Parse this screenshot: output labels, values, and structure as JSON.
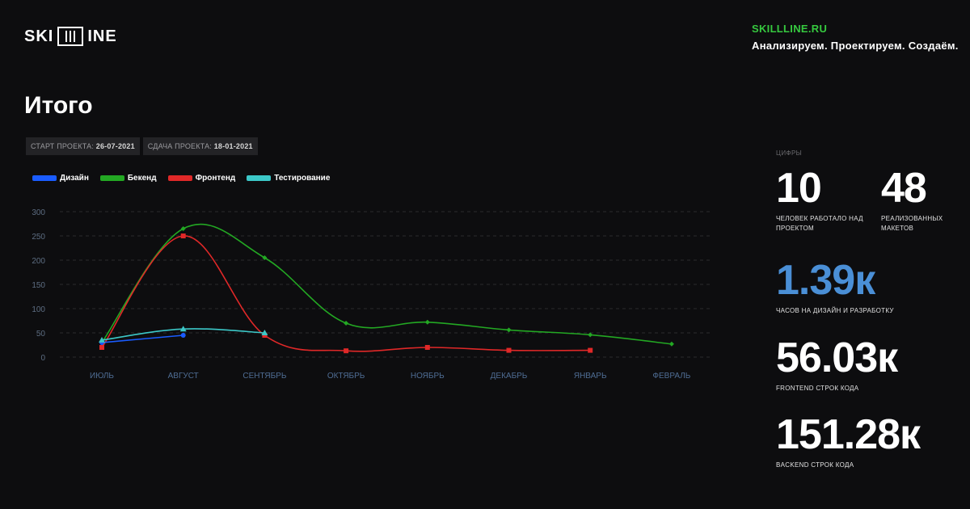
{
  "logo": {
    "left": "SKI",
    "right": "INE"
  },
  "site": {
    "url": "SKILLLINE.RU",
    "tagline": "Анализируем. Проектируем. Создаём."
  },
  "page_title": "Итого",
  "dates": {
    "start_label": "СТАРТ ПРОЕКТА:",
    "start_value": "26-07-2021",
    "end_label": "СДАЧА ПРОЕКТА:",
    "end_value": "18-01-2021"
  },
  "stats": {
    "caption": "ЦИФРЫ",
    "people_value": "10",
    "people_label": "ЧЕЛОВЕК РАБОТАЛО НАД ПРОЕКТОМ",
    "layouts_value": "48",
    "layouts_label": "РЕАЛИЗОВАННЫХ МАКЕТОВ",
    "hours_value": "1.39к",
    "hours_label": "ЧАСОВ НА ДИЗАЙН И РАЗРАБОТКУ",
    "frontend_value": "56.03к",
    "frontend_label": "FRONTEND СТРОК КОДА",
    "backend_value": "151.28к",
    "backend_label": "BACKEND СТРОК КОДА",
    "hours_color": "#4a8fd6"
  },
  "chart_data": {
    "type": "line",
    "categories": [
      "ИЮЛЬ",
      "АВГУСТ",
      "СЕНТЯБРЬ",
      "ОКТЯБРЬ",
      "НОЯБРЬ",
      "ДЕКАБРЬ",
      "ЯНВАРЬ",
      "ФЕВРАЛЬ"
    ],
    "ylim": [
      0,
      300
    ],
    "yticks": [
      0,
      50,
      100,
      150,
      200,
      250,
      300
    ],
    "grid": true,
    "legend_position": "top-left",
    "series": [
      {
        "name": "Дизайн",
        "color": "#1a5cff",
        "marker": "circle",
        "values": [
          30,
          45,
          null,
          null,
          null,
          null,
          null,
          null
        ]
      },
      {
        "name": "Бекенд",
        "color": "#23a823",
        "marker": "diamond",
        "values": [
          30,
          265,
          205,
          70,
          72,
          56,
          46,
          27
        ]
      },
      {
        "name": "Фронтенд",
        "color": "#e02828",
        "marker": "square",
        "values": [
          20,
          250,
          45,
          13,
          20,
          14,
          14,
          null
        ]
      },
      {
        "name": "Тестирование",
        "color": "#3cc8c8",
        "marker": "triangle",
        "values": [
          35,
          58,
          50,
          null,
          null,
          null,
          null,
          null
        ]
      }
    ]
  }
}
